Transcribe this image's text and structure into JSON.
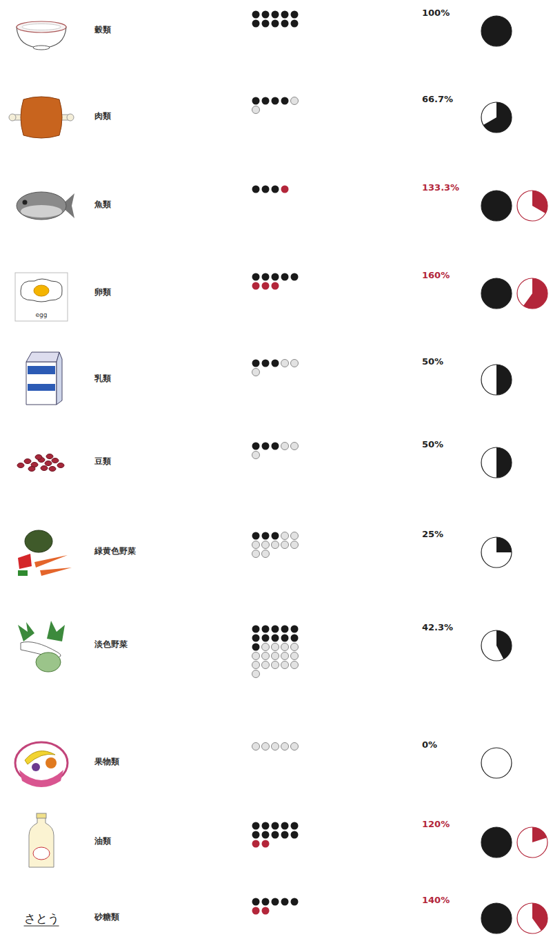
{
  "chart_data": {
    "type": "dot-ratio",
    "categories": [
      "穀類",
      "肉類",
      "魚類",
      "卵類",
      "乳類",
      "豆類",
      "緑黄色野菜",
      "淡色野菜",
      "果物類",
      "油類",
      "砂糖類"
    ],
    "servings": [
      10,
      4,
      4,
      8,
      3,
      3,
      3,
      11,
      0,
      12,
      7
    ],
    "targets": [
      10,
      6,
      3,
      5,
      6,
      6,
      12,
      26,
      5,
      10,
      5
    ],
    "values": [
      100,
      66.7,
      133.3,
      160,
      50,
      50,
      25,
      42.3,
      0,
      120,
      140
    ],
    "value_labels": [
      "100%",
      "66.7%",
      "133.3%",
      "160%",
      "50%",
      "50%",
      "25%",
      "42.3%",
      "0%",
      "120%",
      "140%"
    ],
    "icon_texts": [
      null,
      null,
      null,
      "egg",
      null,
      null,
      null,
      null,
      null,
      null,
      "さとう"
    ]
  }
}
